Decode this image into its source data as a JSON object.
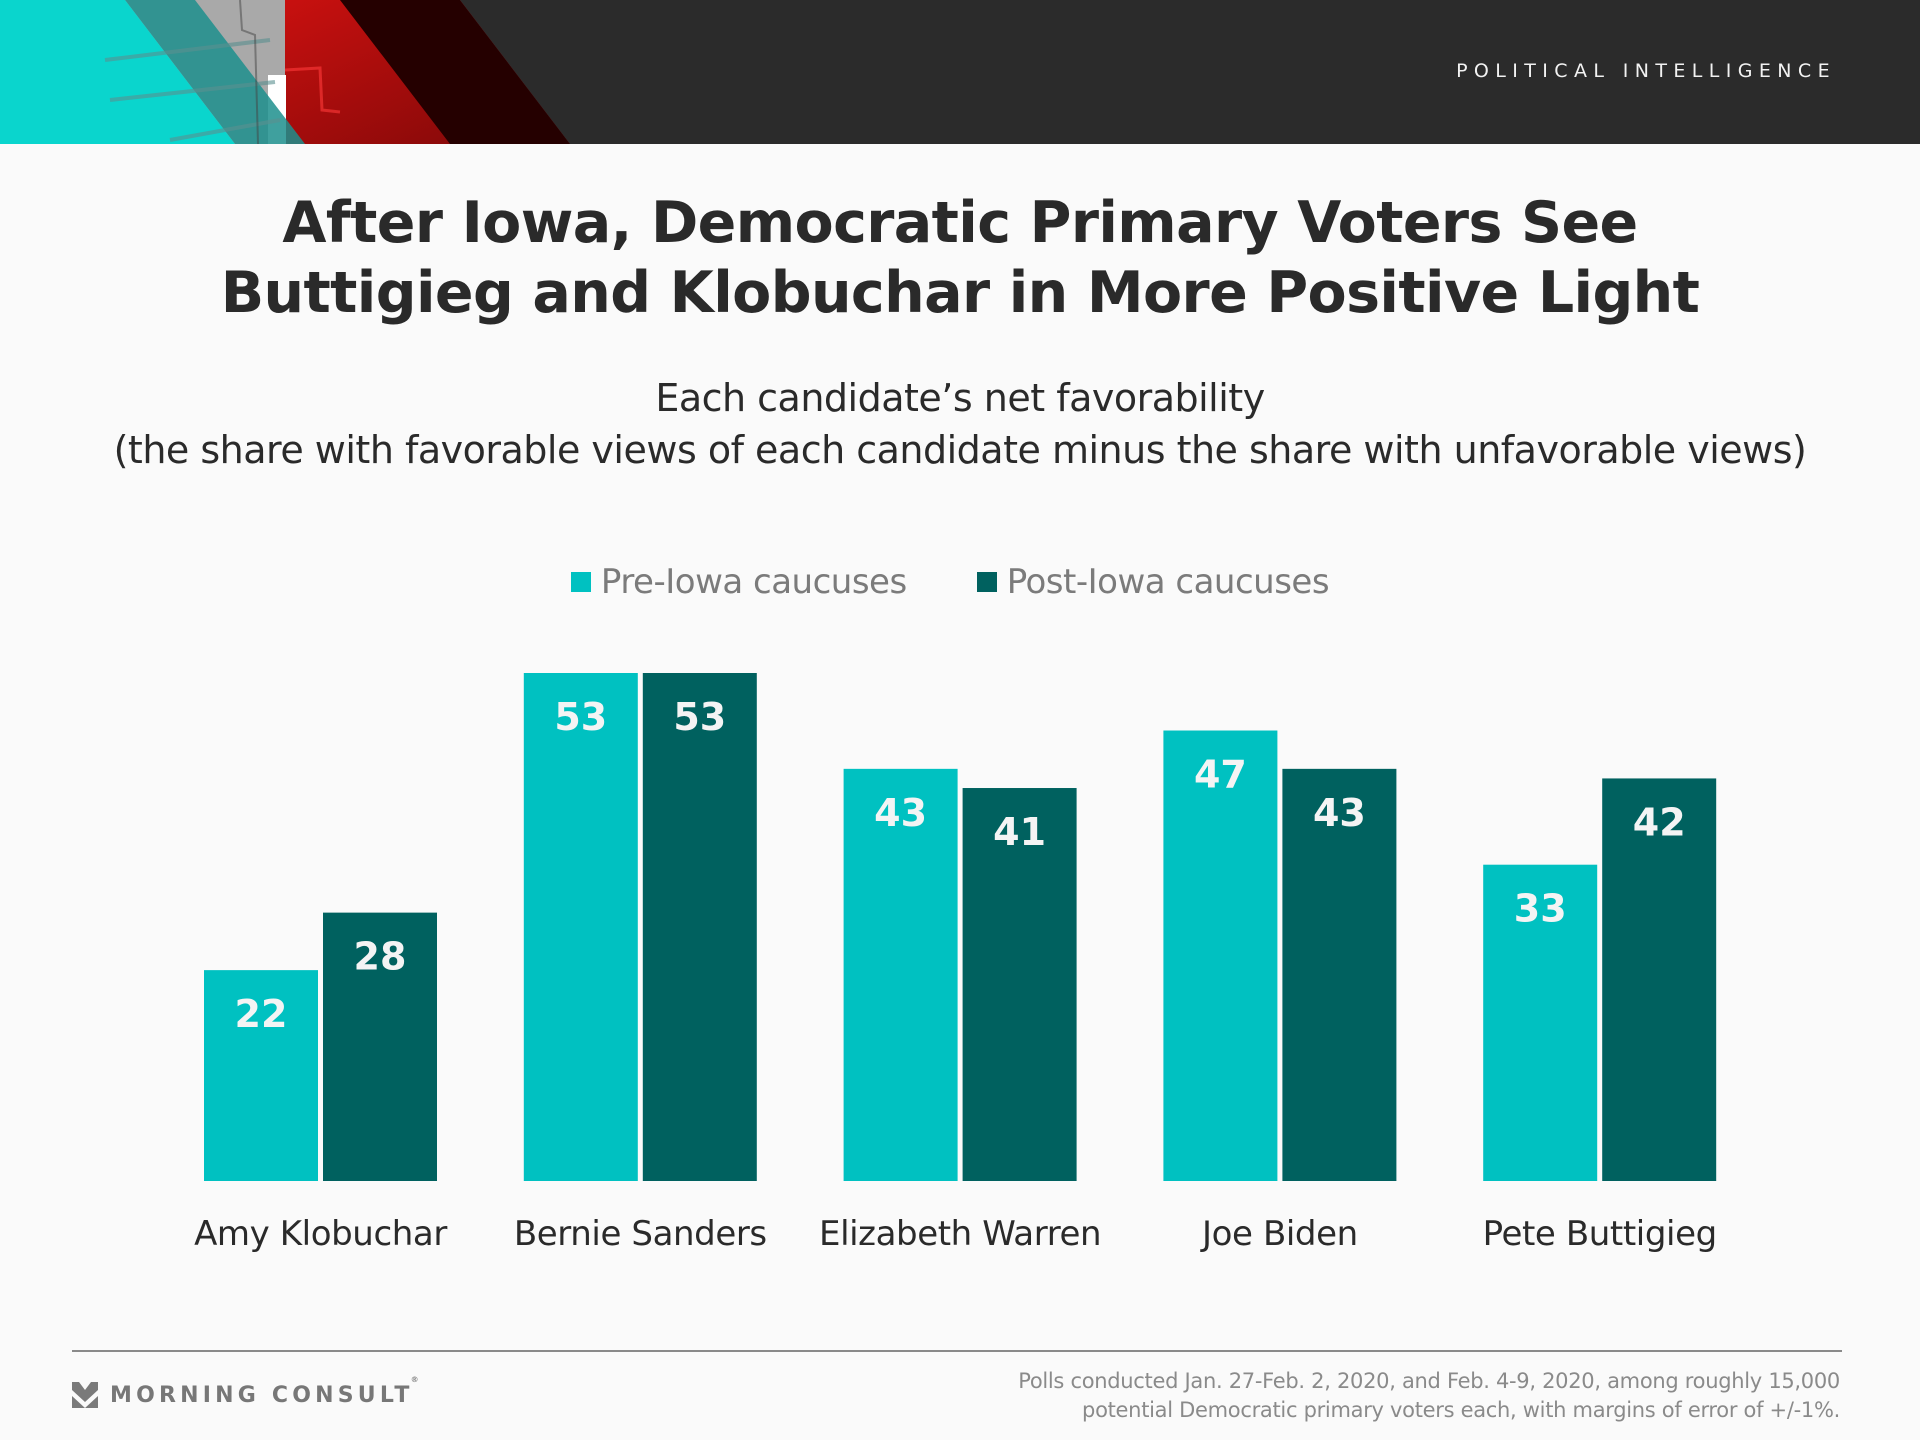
{
  "header": {
    "brand_label": "POLITICAL INTELLIGENCE"
  },
  "title_lines": [
    "After Iowa, Democratic Primary Voters See",
    "Buttigieg and Klobuchar in More Positive Light"
  ],
  "subtitle_lines": [
    "Each candidate’s net favorability",
    "(the share with favorable views of each candidate minus the share with unfavorable views)"
  ],
  "colors": {
    "pre": "#00c1c1",
    "post": "#00615f",
    "header_bg": "#2b2b2b"
  },
  "chart_data": {
    "type": "bar",
    "title": "After Iowa, Democratic Primary Voters See Buttigieg and Klobuchar in More Positive Light",
    "subtitle": "Each candidate’s net favorability (the share with favorable views of each candidate minus the share with unfavorable views)",
    "categories": [
      "Amy Klobuchar",
      "Bernie Sanders",
      "Elizabeth Warren",
      "Joe Biden",
      "Pete Buttigieg"
    ],
    "series": [
      {
        "name": "Pre-Iowa caucuses",
        "color": "#00c1c1",
        "values": [
          22,
          53,
          43,
          47,
          33
        ]
      },
      {
        "name": "Post-Iowa caucuses",
        "color": "#00615f",
        "values": [
          28,
          53,
          41,
          43,
          42
        ]
      }
    ],
    "xlabel": "",
    "ylabel": "",
    "ylim": [
      0,
      53
    ],
    "grid": false,
    "legend_position": "top-center",
    "data_labels": true
  },
  "footer": {
    "logo_text": "MORNING CONSULT",
    "logo_reg": "®",
    "source_lines": [
      "Polls conducted Jan. 27-Feb. 2, 2020, and Feb. 4-9, 2020, among roughly 15,000",
      "potential Democratic primary voters each, with margins of error of +/-1%."
    ]
  }
}
